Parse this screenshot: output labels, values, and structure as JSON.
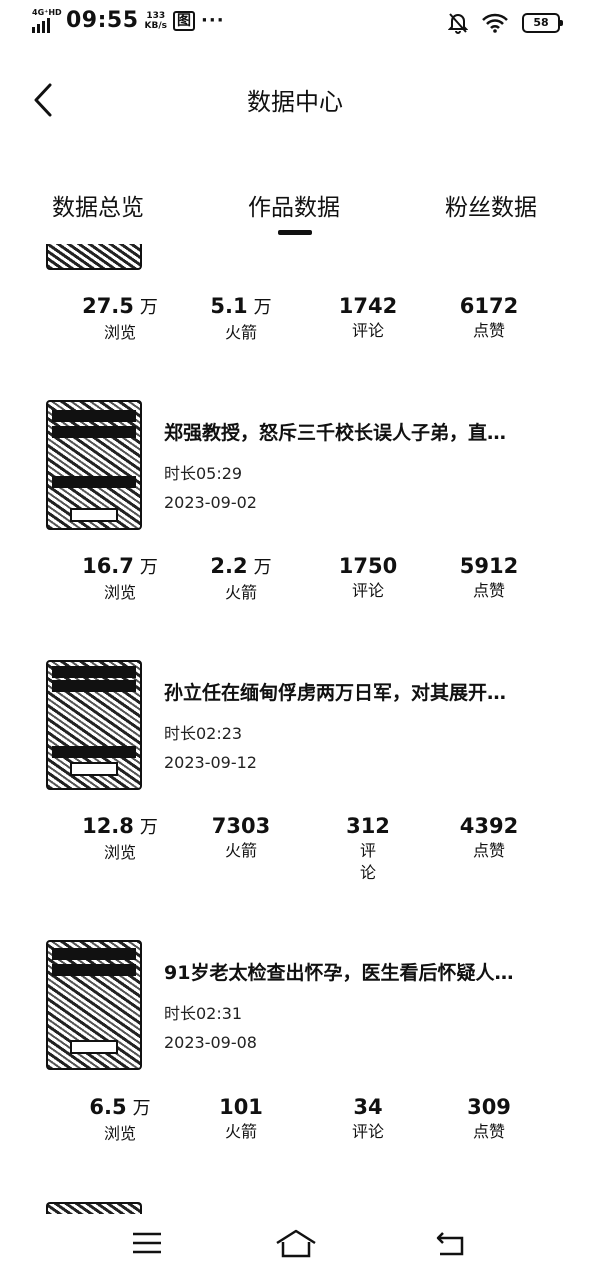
{
  "status": {
    "network": "4G⁺HD",
    "time": "09:55",
    "speed_value": "133",
    "speed_unit": "KB/s",
    "notif_icon_text": "图",
    "more": "···",
    "battery": "58"
  },
  "header": {
    "title": "数据中心"
  },
  "tabs": [
    {
      "label": "数据总览",
      "active": false
    },
    {
      "label": "作品数据",
      "active": true
    },
    {
      "label": "粉丝数据",
      "active": false
    }
  ],
  "items": [
    {
      "stats": [
        {
          "value": "27.5",
          "unit": "万",
          "label": "浏览"
        },
        {
          "value": "5.1",
          "unit": "万",
          "label": "火箭"
        },
        {
          "value": "1742",
          "unit": "",
          "label": "评论"
        },
        {
          "value": "6172",
          "unit": "",
          "label": "点赞"
        }
      ]
    },
    {
      "title": "郑强教授，怒斥三千校长误人子弟，直…",
      "duration": "时长05:29",
      "date": "2023-09-02",
      "stats": [
        {
          "value": "16.7",
          "unit": "万",
          "label": "浏览"
        },
        {
          "value": "2.2",
          "unit": "万",
          "label": "火箭"
        },
        {
          "value": "1750",
          "unit": "",
          "label": "评论"
        },
        {
          "value": "5912",
          "unit": "",
          "label": "点赞"
        }
      ]
    },
    {
      "title": "孙立任在缅甸俘虏两万日军，对其展开…",
      "duration": "时长02:23",
      "date": "2023-09-12",
      "stats": [
        {
          "value": "12.8",
          "unit": "万",
          "label": "浏览"
        },
        {
          "value": "7303",
          "unit": "",
          "label": "火箭"
        },
        {
          "value": "312",
          "unit": "",
          "label": "评论"
        },
        {
          "value": "4392",
          "unit": "",
          "label": "点赞"
        }
      ]
    },
    {
      "title": "91岁老太检查出怀孕，医生看后怀疑人…",
      "duration": "时长02:31",
      "date": "2023-09-08",
      "stats": [
        {
          "value": "6.5",
          "unit": "万",
          "label": "浏览"
        },
        {
          "value": "101",
          "unit": "",
          "label": "火箭"
        },
        {
          "value": "34",
          "unit": "",
          "label": "评论"
        },
        {
          "value": "309",
          "unit": "",
          "label": "点赞"
        }
      ]
    }
  ],
  "icons": {
    "back": "chevron-left-icon",
    "menu": "menu-icon",
    "home": "home-icon",
    "return": "return-icon",
    "mute": "bell-off-icon",
    "wifi": "wifi-icon"
  }
}
